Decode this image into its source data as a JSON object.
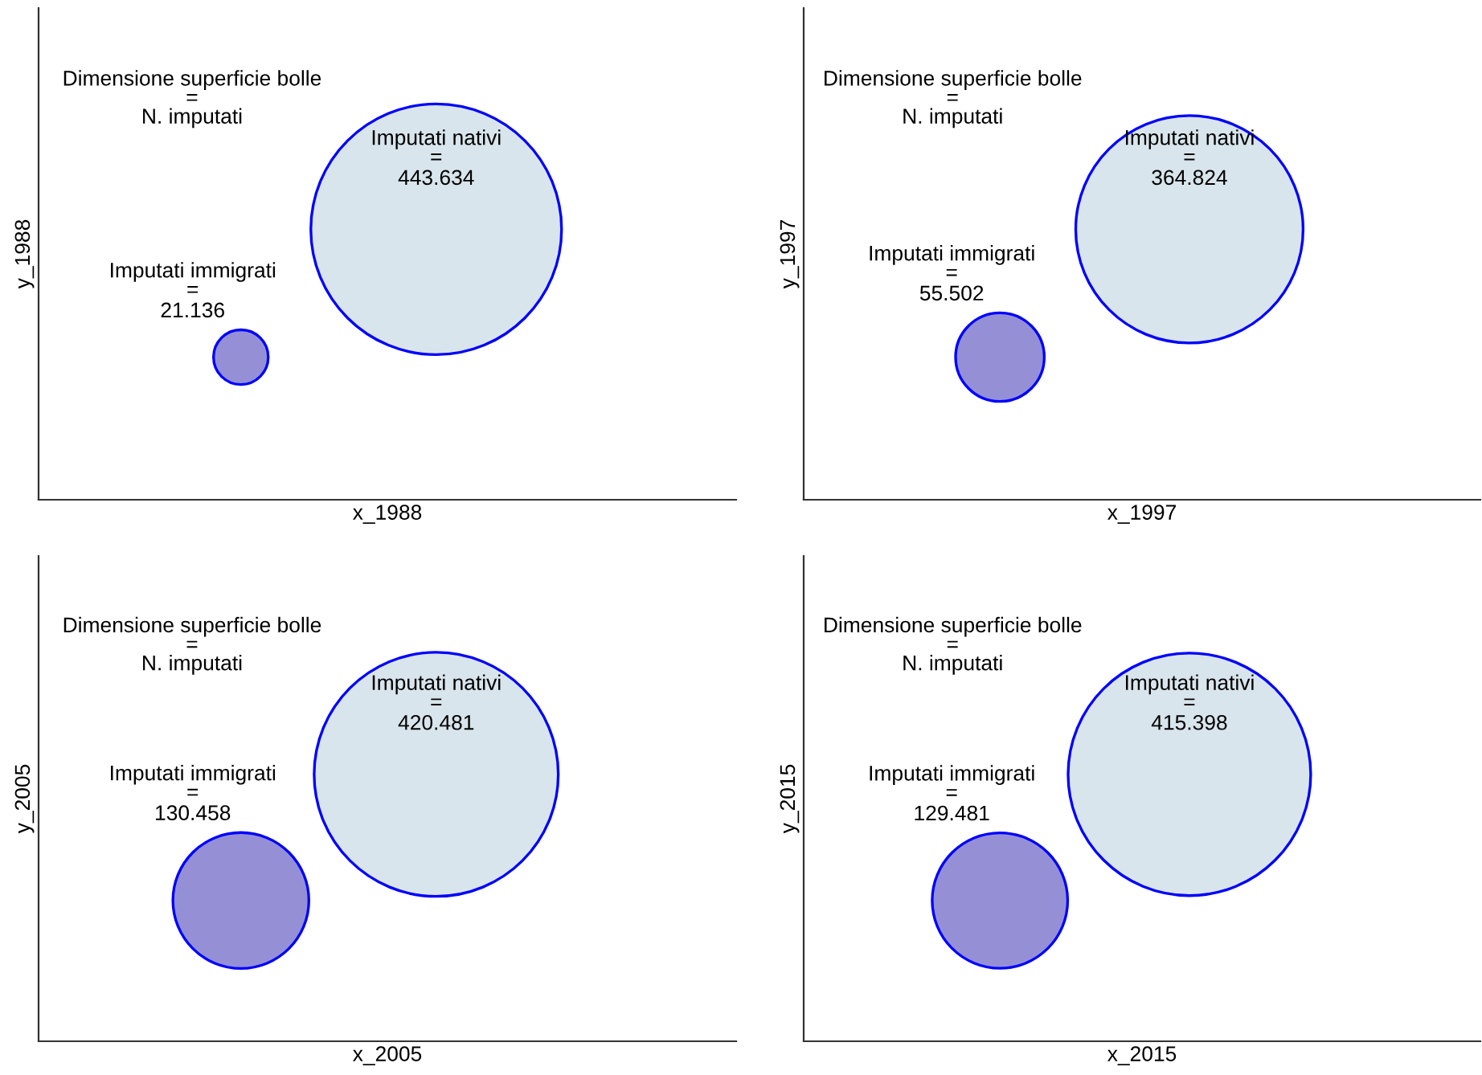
{
  "chart_data": [
    {
      "type": "other",
      "xlabel": "x_1988",
      "ylabel": "y_1988",
      "categories": [
        "Imputati immigrati\n=",
        "Imputati nativi\n="
      ],
      "annotations": [
        "Dimensione superficie bolle\n=\nN. imputati"
      ],
      "colors": [
        "#9590d6",
        "#d9e5ec"
      ],
      "values": [
        21.136,
        443.634
      ],
      "data_labels": true
    },
    {
      "type": "other",
      "xlabel": "x_1997",
      "ylabel": "y_1997",
      "categories": [
        "Imputati immigrati\n=",
        "Imputati nativi\n="
      ],
      "annotations": [
        "Dimensione superficie bolle\n=\nN. imputati"
      ],
      "colors": [
        "#9590d6",
        "#d9e5ec"
      ],
      "values": [
        55.502,
        364.824
      ],
      "data_labels": true
    },
    {
      "type": "other",
      "xlabel": "x_2005",
      "ylabel": "y_2005",
      "categories": [
        "Imputati immigrati\n=",
        "Imputati nativi\n="
      ],
      "annotations": [
        "Dimensione superficie bolle\n=\nN. imputati"
      ],
      "colors": [
        "#9590d6",
        "#d9e5ec"
      ],
      "values": [
        130.458,
        420.481
      ],
      "data_labels": true
    },
    {
      "type": "other",
      "xlabel": "x_2015",
      "ylabel": "y_2015",
      "categories": [
        "Imputati immigrati\n=",
        "Imputati nativi\n="
      ],
      "annotations": [
        "Dimensione superficie bolle\n=\nN. imputati"
      ],
      "colors": [
        "#9590d6",
        "#d9e5ec"
      ],
      "values": [
        129.481,
        415.398
      ],
      "data_labels": true
    }
  ]
}
